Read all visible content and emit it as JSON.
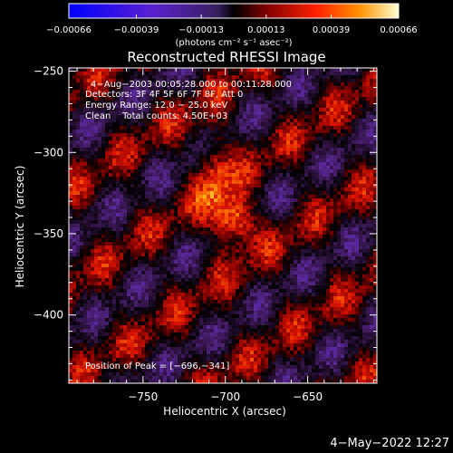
{
  "chart_data": {
    "type": "heatmap",
    "title": "Reconstructed RHESSI Image",
    "xlabel": "Heliocentric X (arcsec)",
    "ylabel": "Heliocentric Y (arcsec)",
    "xlim": [
      -795,
      -608
    ],
    "ylim": [
      -442,
      -248
    ],
    "x_ticks": [
      -750,
      -700,
      -650
    ],
    "x_tick_labels": [
      "−750",
      "−700",
      "−650"
    ],
    "y_ticks": [
      -250,
      -300,
      -350,
      -400
    ],
    "y_tick_labels": [
      "−250",
      "−300",
      "−350",
      "−400"
    ],
    "colorbar": {
      "min": -0.00066,
      "max": 0.00066,
      "ticks": [
        -0.00066,
        -0.00039,
        -0.00013,
        0.00013,
        0.00039,
        0.00066
      ],
      "tick_labels": [
        "−0.00066",
        "−0.00039",
        "−0.00013",
        "0.00013",
        "0.00039",
        "0.00066"
      ],
      "unit_label": "(photons cm⁻² s⁻¹ asec⁻²)"
    },
    "peak": [
      -696,
      -341
    ],
    "annotations": [
      "4−Aug−2003 00:05:28.000 to 00:11:28.000",
      "Detectors: 3F 4F 5F 6F 7F 8F, Att 0",
      "Energy Range: 12.0 − 25.0 keV",
      "Clean    Total counts: 4.50E+03",
      "Position of Peak = [−696,−341]"
    ],
    "grid": false
  },
  "footer": {
    "timestamp": "4−May−2022 12:27"
  }
}
